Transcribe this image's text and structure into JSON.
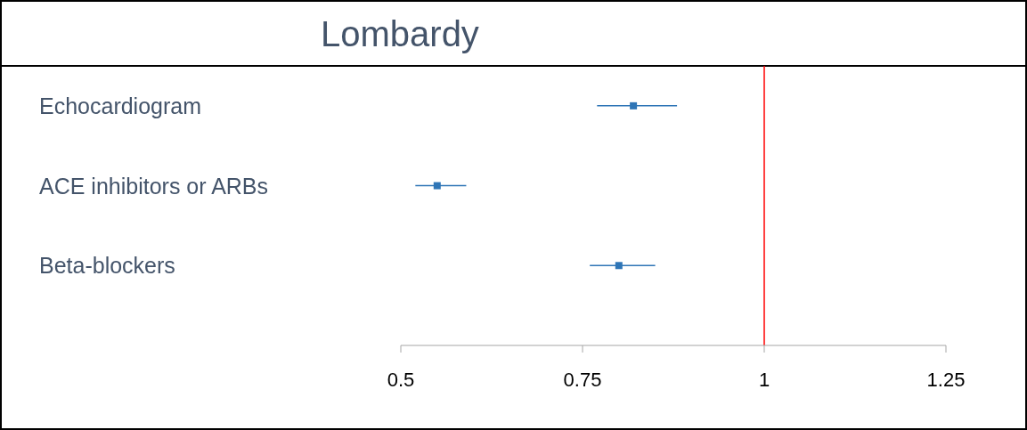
{
  "chart_data": {
    "type": "scatter",
    "orientation": "horizontal",
    "title": "Lombardy",
    "categories": [
      "Echocardiogram",
      "ACE inhibitors or ARBs",
      "Beta-blockers"
    ],
    "values": [
      0.82,
      0.55,
      0.8
    ],
    "errors": [
      [
        0.77,
        0.88
      ],
      [
        0.52,
        0.59
      ],
      [
        0.76,
        0.85
      ]
    ],
    "color": "#2e75b6",
    "marker": "square",
    "xlim": [
      0.5,
      1.25
    ],
    "xticks": [
      0.5,
      0.75,
      1,
      1.25
    ],
    "ref_lines": [
      {
        "axis": "x",
        "value": 1,
        "color": "#ff0000"
      }
    ]
  }
}
